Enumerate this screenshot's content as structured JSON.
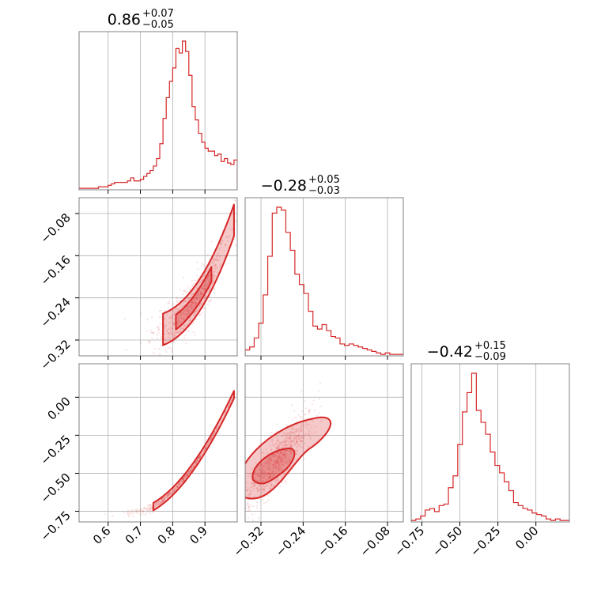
{
  "chart_data": {
    "type": "corner",
    "accent_color": "#d62728",
    "grid": true,
    "parameters": [
      {
        "title_value": "0.86",
        "title_plus": "+0.07",
        "title_minus": "−0.05",
        "range": [
          0.51,
          1.0
        ],
        "ticks": [
          0.6,
          0.7,
          0.8,
          0.9
        ],
        "tick_labels": [
          "0.6",
          "0.7",
          "0.8",
          "0.9"
        ],
        "hist": [
          0.01,
          0.01,
          0.01,
          0.01,
          0.01,
          0.01,
          0.02,
          0.02,
          0.02,
          0.03,
          0.04,
          0.05,
          0.05,
          0.05,
          0.05,
          0.06,
          0.08,
          0.06,
          0.06,
          0.07,
          0.09,
          0.11,
          0.13,
          0.16,
          0.21,
          0.31,
          0.48,
          0.62,
          0.73,
          0.82,
          0.95,
          0.92,
          1.0,
          0.93,
          0.77,
          0.56,
          0.47,
          0.38,
          0.32,
          0.28,
          0.26,
          0.26,
          0.23,
          0.24,
          0.19,
          0.21,
          0.18,
          0.17,
          0.2
        ]
      },
      {
        "title_value": "−0.28",
        "title_plus": "+0.05",
        "title_minus": "−0.03",
        "range": [
          -0.35,
          -0.05
        ],
        "ticks": [
          -0.32,
          -0.24,
          -0.16,
          -0.08
        ],
        "tick_labels": [
          "−0.32",
          "−0.24",
          "−0.16",
          "−0.08"
        ],
        "hist": [
          0.04,
          0.06,
          0.12,
          0.22,
          0.41,
          0.67,
          0.96,
          1.0,
          0.98,
          0.83,
          0.71,
          0.55,
          0.48,
          0.42,
          0.3,
          0.2,
          0.18,
          0.21,
          0.17,
          0.13,
          0.12,
          0.08,
          0.07,
          0.08,
          0.07,
          0.06,
          0.05,
          0.04,
          0.03,
          0.02,
          0.01,
          0.02,
          0.01,
          0.01,
          0.01
        ]
      },
      {
        "title_value": "−0.42",
        "title_plus": "+0.15",
        "title_minus": "−0.09",
        "range": [
          -0.82,
          0.22
        ],
        "ticks": [
          -0.75,
          -0.5,
          -0.25,
          0.0
        ],
        "tick_labels": [
          "−0.75",
          "−0.50",
          "−0.25",
          "0.00"
        ],
        "hist": [
          0.01,
          0.02,
          0.04,
          0.08,
          0.09,
          0.07,
          0.11,
          0.12,
          0.23,
          0.31,
          0.52,
          0.74,
          0.87,
          1.0,
          0.75,
          0.67,
          0.59,
          0.47,
          0.38,
          0.33,
          0.27,
          0.21,
          0.13,
          0.11,
          0.09,
          0.08,
          0.06,
          0.05,
          0.04,
          0.02,
          0.01,
          0.02,
          0.01,
          0.01
        ]
      }
    ]
  }
}
